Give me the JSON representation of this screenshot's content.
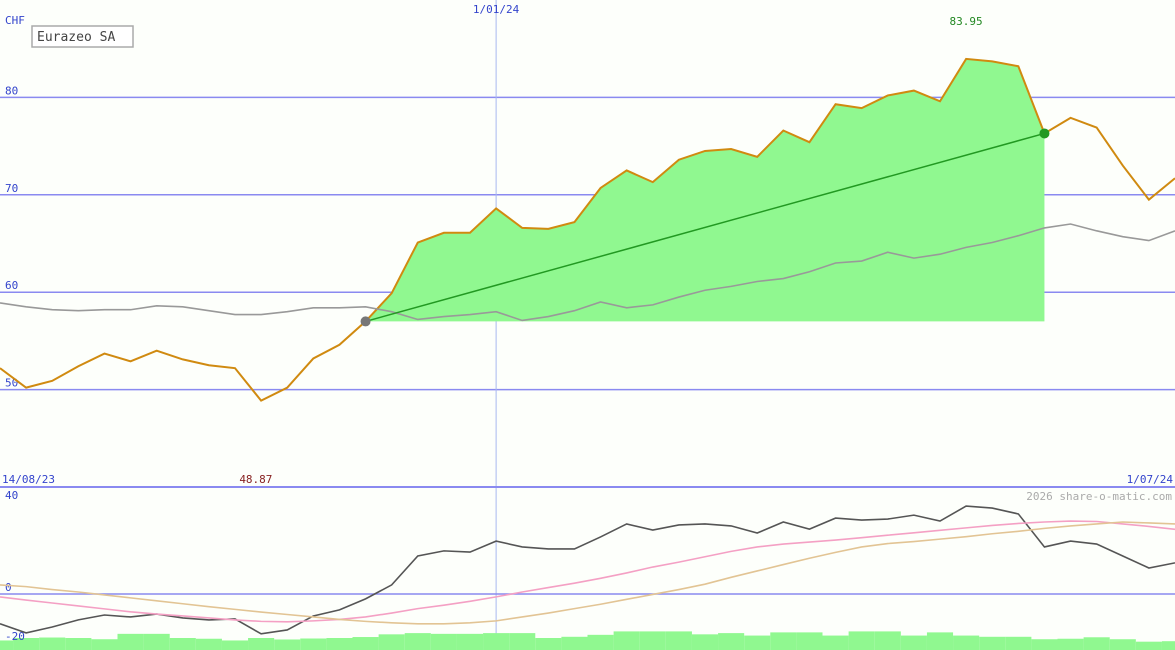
{
  "chart_data": [
    {
      "type": "line",
      "title": "Eurazeo SA",
      "y_label": "CHF",
      "xlim": [
        0,
        45
      ],
      "xticks": [
        {
          "value": 0,
          "label": "14/08/23"
        },
        {
          "value": 19,
          "label": "1/01/24"
        },
        {
          "value": 45,
          "label": "1/07/24"
        }
      ],
      "ylim": [
        40,
        90
      ],
      "yticks": [
        50,
        60,
        70,
        80
      ],
      "grid": true,
      "max_label": 83.95,
      "min_label": 48.87,
      "highlight_range": [
        14,
        40
      ],
      "highlight_color": "#90f890",
      "trend_color": "#229922",
      "series": [
        {
          "color": "#d08a10",
          "values": [
            52.2,
            50.2,
            50.9,
            52.4,
            53.7,
            52.9,
            54.0,
            53.1,
            52.5,
            52.2,
            48.87,
            50.2,
            53.2,
            54.6,
            57.0,
            59.9,
            65.1,
            66.1,
            66.1,
            68.6,
            66.6,
            66.5,
            67.2,
            70.7,
            72.5,
            71.3,
            73.6,
            74.5,
            74.7,
            73.9,
            76.6,
            75.4,
            79.3,
            78.9,
            80.2,
            80.7,
            79.6,
            83.95,
            83.7,
            83.2,
            76.3,
            77.9,
            76.9,
            73.0,
            69.5,
            71.7
          ]
        },
        {
          "color": "#999999",
          "values": [
            58.9,
            58.5,
            58.2,
            58.1,
            58.2,
            58.2,
            58.6,
            58.5,
            58.1,
            57.7,
            57.7,
            58.0,
            58.4,
            58.4,
            58.5,
            58.0,
            57.2,
            57.5,
            57.7,
            58.0,
            57.1,
            57.5,
            58.1,
            59.0,
            58.4,
            58.7,
            59.5,
            60.2,
            60.6,
            61.1,
            61.4,
            62.1,
            63.0,
            63.2,
            64.1,
            63.5,
            63.9,
            64.6,
            65.1,
            65.8,
            66.6,
            67.0,
            66.3,
            65.7,
            65.3,
            66.3
          ]
        }
      ]
    },
    {
      "type": "line",
      "xlim": [
        0,
        45
      ],
      "ylim": [
        -22.9,
        43.7
      ],
      "yticks": [
        -20,
        0,
        40
      ],
      "zero_line": true,
      "credit": "2026 share-o-matic.com",
      "volume": {
        "color": "#90f890",
        "values": [
          -19,
          -18,
          -17.8,
          -18,
          -18.5,
          -16.3,
          -16.3,
          -18,
          -18.3,
          -19,
          -18,
          -18.6,
          -18.2,
          -18,
          -17.6,
          -16.5,
          -16,
          -16.3,
          -16.3,
          -16,
          -16,
          -18,
          -17.5,
          -16.7,
          -15.3,
          -15.3,
          -15.3,
          -16.5,
          -16,
          -17,
          -15.7,
          -15.7,
          -17,
          -15.3,
          -15.3,
          -17,
          -15.7,
          -17,
          -17.5,
          -17.5,
          -18.5,
          -18.3,
          -17.7,
          -18.5,
          -19.5,
          -19.3
        ]
      },
      "series": [
        {
          "color": "#555555",
          "values": [
            -12.2,
            -15.9,
            -13.5,
            -10.6,
            -8.6,
            -9.4,
            -8.2,
            -9.8,
            -10.6,
            -10.2,
            -16.3,
            -14.7,
            -9.0,
            -6.5,
            -2.0,
            3.7,
            15.5,
            17.6,
            17.1,
            21.6,
            19.2,
            18.4,
            18.4,
            23.3,
            28.6,
            26.1,
            28.2,
            28.6,
            27.8,
            24.9,
            29.4,
            26.5,
            31.0,
            30.2,
            30.6,
            32.2,
            29.8,
            35.9,
            35.1,
            32.7,
            19.2,
            21.6,
            20.4,
            15.5,
            10.6,
            12.7
          ]
        },
        {
          "color": "#f4a0c4",
          "values": [
            -1.2,
            -2.5,
            -3.7,
            -4.9,
            -6.1,
            -7.3,
            -8.2,
            -9.0,
            -9.8,
            -10.6,
            -11.2,
            -11.4,
            -11.0,
            -10.4,
            -9.4,
            -7.8,
            -6.0,
            -4.6,
            -3.0,
            -1.2,
            0.8,
            2.6,
            4.4,
            6.4,
            8.6,
            11.0,
            13.0,
            15.2,
            17.4,
            19.2,
            20.4,
            21.2,
            22.0,
            23.0,
            24.0,
            25.0,
            26.0,
            27.0,
            28.0,
            28.8,
            29.4,
            29.8,
            29.6,
            28.6,
            27.6,
            26.4
          ]
        },
        {
          "color": "#e2c494",
          "values": [
            3.7,
            3.0,
            1.8,
            0.8,
            -0.4,
            -1.6,
            -2.8,
            -4.0,
            -5.2,
            -6.3,
            -7.4,
            -8.4,
            -9.4,
            -10.4,
            -11.2,
            -11.8,
            -12.2,
            -12.2,
            -11.8,
            -11.0,
            -9.4,
            -7.8,
            -6.0,
            -4.2,
            -2.2,
            -0.2,
            1.8,
            4.0,
            6.8,
            9.4,
            12.0,
            14.6,
            17.0,
            19.2,
            20.6,
            21.4,
            22.4,
            23.4,
            24.6,
            25.6,
            26.8,
            27.8,
            28.6,
            29.4,
            29.0,
            28.6
          ]
        }
      ]
    }
  ]
}
